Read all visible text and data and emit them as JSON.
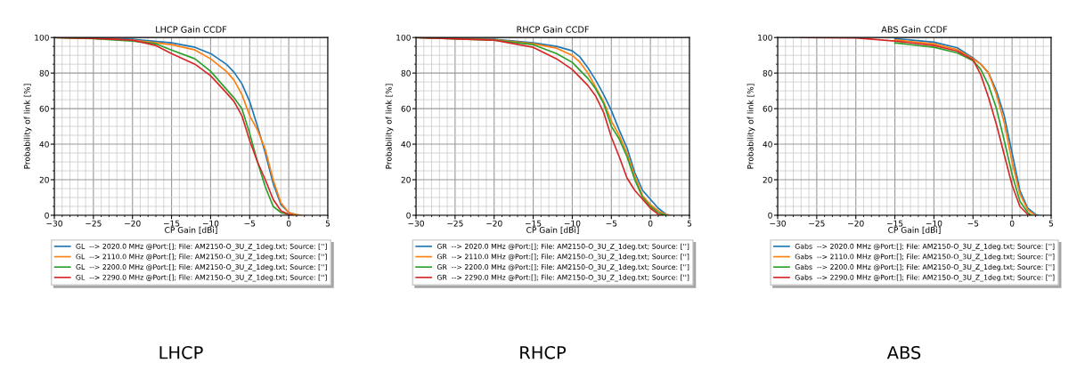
{
  "chart_data": [
    {
      "type": "line",
      "title": "LHCP Gain CCDF",
      "xlabel": "CP Gain [dBi]",
      "ylabel": "Probability of link [%]",
      "xlim": [
        -30,
        5
      ],
      "ylim": [
        0,
        100
      ],
      "xticks": [
        -30,
        -25,
        -20,
        -15,
        -10,
        -5,
        0,
        5
      ],
      "yticks": [
        0,
        20,
        40,
        60,
        80,
        100
      ],
      "grid": true,
      "legend": "bottom",
      "annotations": [
        "LHCP"
      ],
      "series": [
        {
          "name": "GL  --> 2020.0 MHz @Port:[]; File: AM2150-O_3U_Z_1deg.txt; Source: ['']",
          "color": "#1f77b4",
          "x": [
            -30,
            -25,
            -20,
            -15,
            -12,
            -10,
            -8,
            -7,
            -6,
            -5,
            -4,
            -3,
            -2,
            -1,
            0,
            1,
            1.5
          ],
          "values": [
            100,
            99.7,
            99,
            97,
            94.5,
            91,
            85,
            80.5,
            74,
            64,
            50,
            35,
            18,
            6,
            1.5,
            0.3,
            0
          ]
        },
        {
          "name": "GL  --> 2110.0 MHz @Port:[]; File: AM2150-O_3U_Z_1deg.txt; Source: ['']",
          "color": "#ff7f0e",
          "x": [
            -30,
            -25,
            -20,
            -15,
            -12,
            -10,
            -8,
            -7,
            -6,
            -5,
            -4,
            -3,
            -2,
            -1,
            0,
            1,
            1.5
          ],
          "values": [
            100,
            99.5,
            98.5,
            96,
            93,
            88,
            81,
            76,
            68,
            56,
            48,
            37,
            20,
            7,
            1.5,
            0.3,
            0
          ]
        },
        {
          "name": "GL  --> 2200.0 MHz @Port:[]; File: AM2150-O_3U_Z_1deg.txt; Source: ['']",
          "color": "#2ca02c",
          "x": [
            -30,
            -25,
            -20,
            -17,
            -15,
            -12,
            -10,
            -8,
            -7,
            -6,
            -5,
            -4,
            -3,
            -2,
            -1,
            0,
            0.5
          ],
          "values": [
            100,
            99.4,
            98,
            96.5,
            93,
            88,
            81,
            71,
            66,
            60,
            46,
            30,
            16,
            5,
            1.5,
            0.5,
            0
          ]
        },
        {
          "name": "GL  --> 2290.0 MHz @Port:[]; File: AM2150-O_3U_Z_1deg.txt; Source: ['']",
          "color": "#d62728",
          "x": [
            -30,
            -25,
            -20,
            -17,
            -15,
            -12,
            -10,
            -8,
            -7,
            -6,
            -5,
            -4,
            -3,
            -2,
            -1,
            0,
            0.5
          ],
          "values": [
            100,
            99.5,
            98.5,
            95.5,
            91,
            85,
            78.5,
            69,
            64,
            56,
            42,
            30,
            20,
            9,
            2.5,
            0.5,
            0
          ]
        }
      ]
    },
    {
      "type": "line",
      "title": "RHCP Gain CCDF",
      "xlabel": "CP Gain [dBi]",
      "ylabel": "Probability of link [%]",
      "xlim": [
        -30,
        5
      ],
      "ylim": [
        0,
        100
      ],
      "xticks": [
        -30,
        -25,
        -20,
        -15,
        -10,
        -5,
        0,
        5
      ],
      "yticks": [
        0,
        20,
        40,
        60,
        80,
        100
      ],
      "grid": true,
      "legend": "bottom",
      "annotations": [
        "RHCP"
      ],
      "series": [
        {
          "name": "GR  --> 2020.0 MHz @Port:[]; File: AM2150-O_3U_Z_1deg.txt; Source: ['']",
          "color": "#1f77b4",
          "x": [
            -30,
            -20,
            -15,
            -12,
            -10,
            -9,
            -8,
            -7,
            -6,
            -5,
            -4,
            -3,
            -2,
            -1,
            0,
            1,
            2,
            2.5
          ],
          "values": [
            100,
            99,
            97,
            95,
            92.5,
            89,
            83,
            76,
            68,
            59,
            48,
            38,
            24,
            14,
            9,
            4,
            0.5,
            0
          ]
        },
        {
          "name": "GR  --> 2110.0 MHz @Port:[]; File: AM2150-O_3U_Z_1deg.txt; Source: ['']",
          "color": "#ff7f0e",
          "x": [
            -30,
            -20,
            -15,
            -12,
            -10,
            -9,
            -8,
            -7,
            -6,
            -5,
            -4,
            -3,
            -2,
            -1,
            0,
            1,
            2,
            2.5
          ],
          "values": [
            100,
            98.8,
            96.5,
            94,
            90,
            86,
            80,
            72,
            64,
            53,
            45,
            35,
            22,
            11,
            6,
            2.5,
            0.3,
            0
          ]
        },
        {
          "name": "GR  --> 2200.0 MHz @Port:[]; File: AM2150-O_3U_Z_1deg.txt; Source: ['']",
          "color": "#2ca02c",
          "x": [
            -30,
            -20,
            -15,
            -12,
            -10,
            -8,
            -7,
            -6,
            -5,
            -4,
            -3,
            -2,
            -1,
            0,
            1,
            2
          ],
          "values": [
            100,
            98.5,
            96,
            91,
            86,
            77,
            71,
            63,
            50,
            43,
            33,
            20,
            10,
            5,
            1.5,
            0
          ]
        },
        {
          "name": "GR  --> 2290.0 MHz @Port:[]; File: AM2150-O_3U_Z_1deg.txt; Source: ['']",
          "color": "#d62728",
          "x": [
            -30,
            -20,
            -15,
            -12,
            -10,
            -8,
            -7,
            -6,
            -5,
            -4,
            -3,
            -2,
            -1,
            0,
            1,
            1.5
          ],
          "values": [
            100,
            98.5,
            94.5,
            88,
            82,
            73,
            67,
            58,
            44,
            33,
            21,
            14,
            9,
            4,
            0.5,
            0
          ]
        }
      ]
    },
    {
      "type": "line",
      "title": "ABS Gain CCDF",
      "xlabel": "CP Gain [dBi]",
      "ylabel": "Probability of link [%]",
      "xlim": [
        -30,
        5
      ],
      "ylim": [
        0,
        100
      ],
      "xticks": [
        -30,
        -25,
        -20,
        -15,
        -10,
        -5,
        0,
        5
      ],
      "yticks": [
        0,
        20,
        40,
        60,
        80,
        100
      ],
      "grid": true,
      "legend": "bottom",
      "annotations": [
        "ABS"
      ],
      "series": [
        {
          "name": "Gabs  --> 2020.0 MHz @Port:[]; File: AM2150-O_3U_Z_1deg.txt; Source: ['']",
          "color": "#1f77b4",
          "x": [
            -15,
            -10,
            -7,
            -5,
            -4,
            -3,
            -2,
            -1,
            0,
            1,
            2,
            3,
            3.3
          ],
          "values": [
            99.4,
            97.4,
            94.2,
            88.5,
            85,
            80,
            70,
            56,
            35,
            14,
            4,
            0.5,
            0
          ]
        },
        {
          "name": "Gabs  --> 2110.0 MHz @Port:[]; File: AM2150-O_3U_Z_1deg.txt; Source: ['']",
          "color": "#ff7f0e",
          "x": [
            -15,
            -10,
            -7,
            -5,
            -4,
            -3,
            -2,
            -1,
            0,
            1,
            2,
            3
          ],
          "values": [
            98.7,
            96.4,
            93.2,
            88,
            85,
            80,
            68,
            52,
            30,
            12,
            3,
            0
          ]
        },
        {
          "name": "Gabs  --> 2200.0 MHz @Port:[]; File: AM2150-O_3U_Z_1deg.txt; Source: ['']",
          "color": "#2ca02c",
          "x": [
            -15,
            -10,
            -7,
            -5,
            -4,
            -3,
            -2,
            -1,
            0,
            1,
            2,
            2.5
          ],
          "values": [
            97,
            94.5,
            91.3,
            87,
            82,
            73,
            60,
            42,
            23,
            8,
            1.5,
            0
          ]
        },
        {
          "name": "Gabs  --> 2290.0 MHz @Port:[]; File: AM2150-O_3U_Z_1deg.txt; Source: ['']",
          "color": "#d62728",
          "x": [
            -27,
            -20,
            -15,
            -10,
            -7,
            -5,
            -4,
            -3,
            -2,
            -1,
            0,
            1,
            2,
            2.3
          ],
          "values": [
            100,
            99.8,
            98,
            95.5,
            92.3,
            87.5,
            79,
            66,
            51,
            34,
            17,
            5,
            0.5,
            0
          ]
        }
      ]
    }
  ]
}
